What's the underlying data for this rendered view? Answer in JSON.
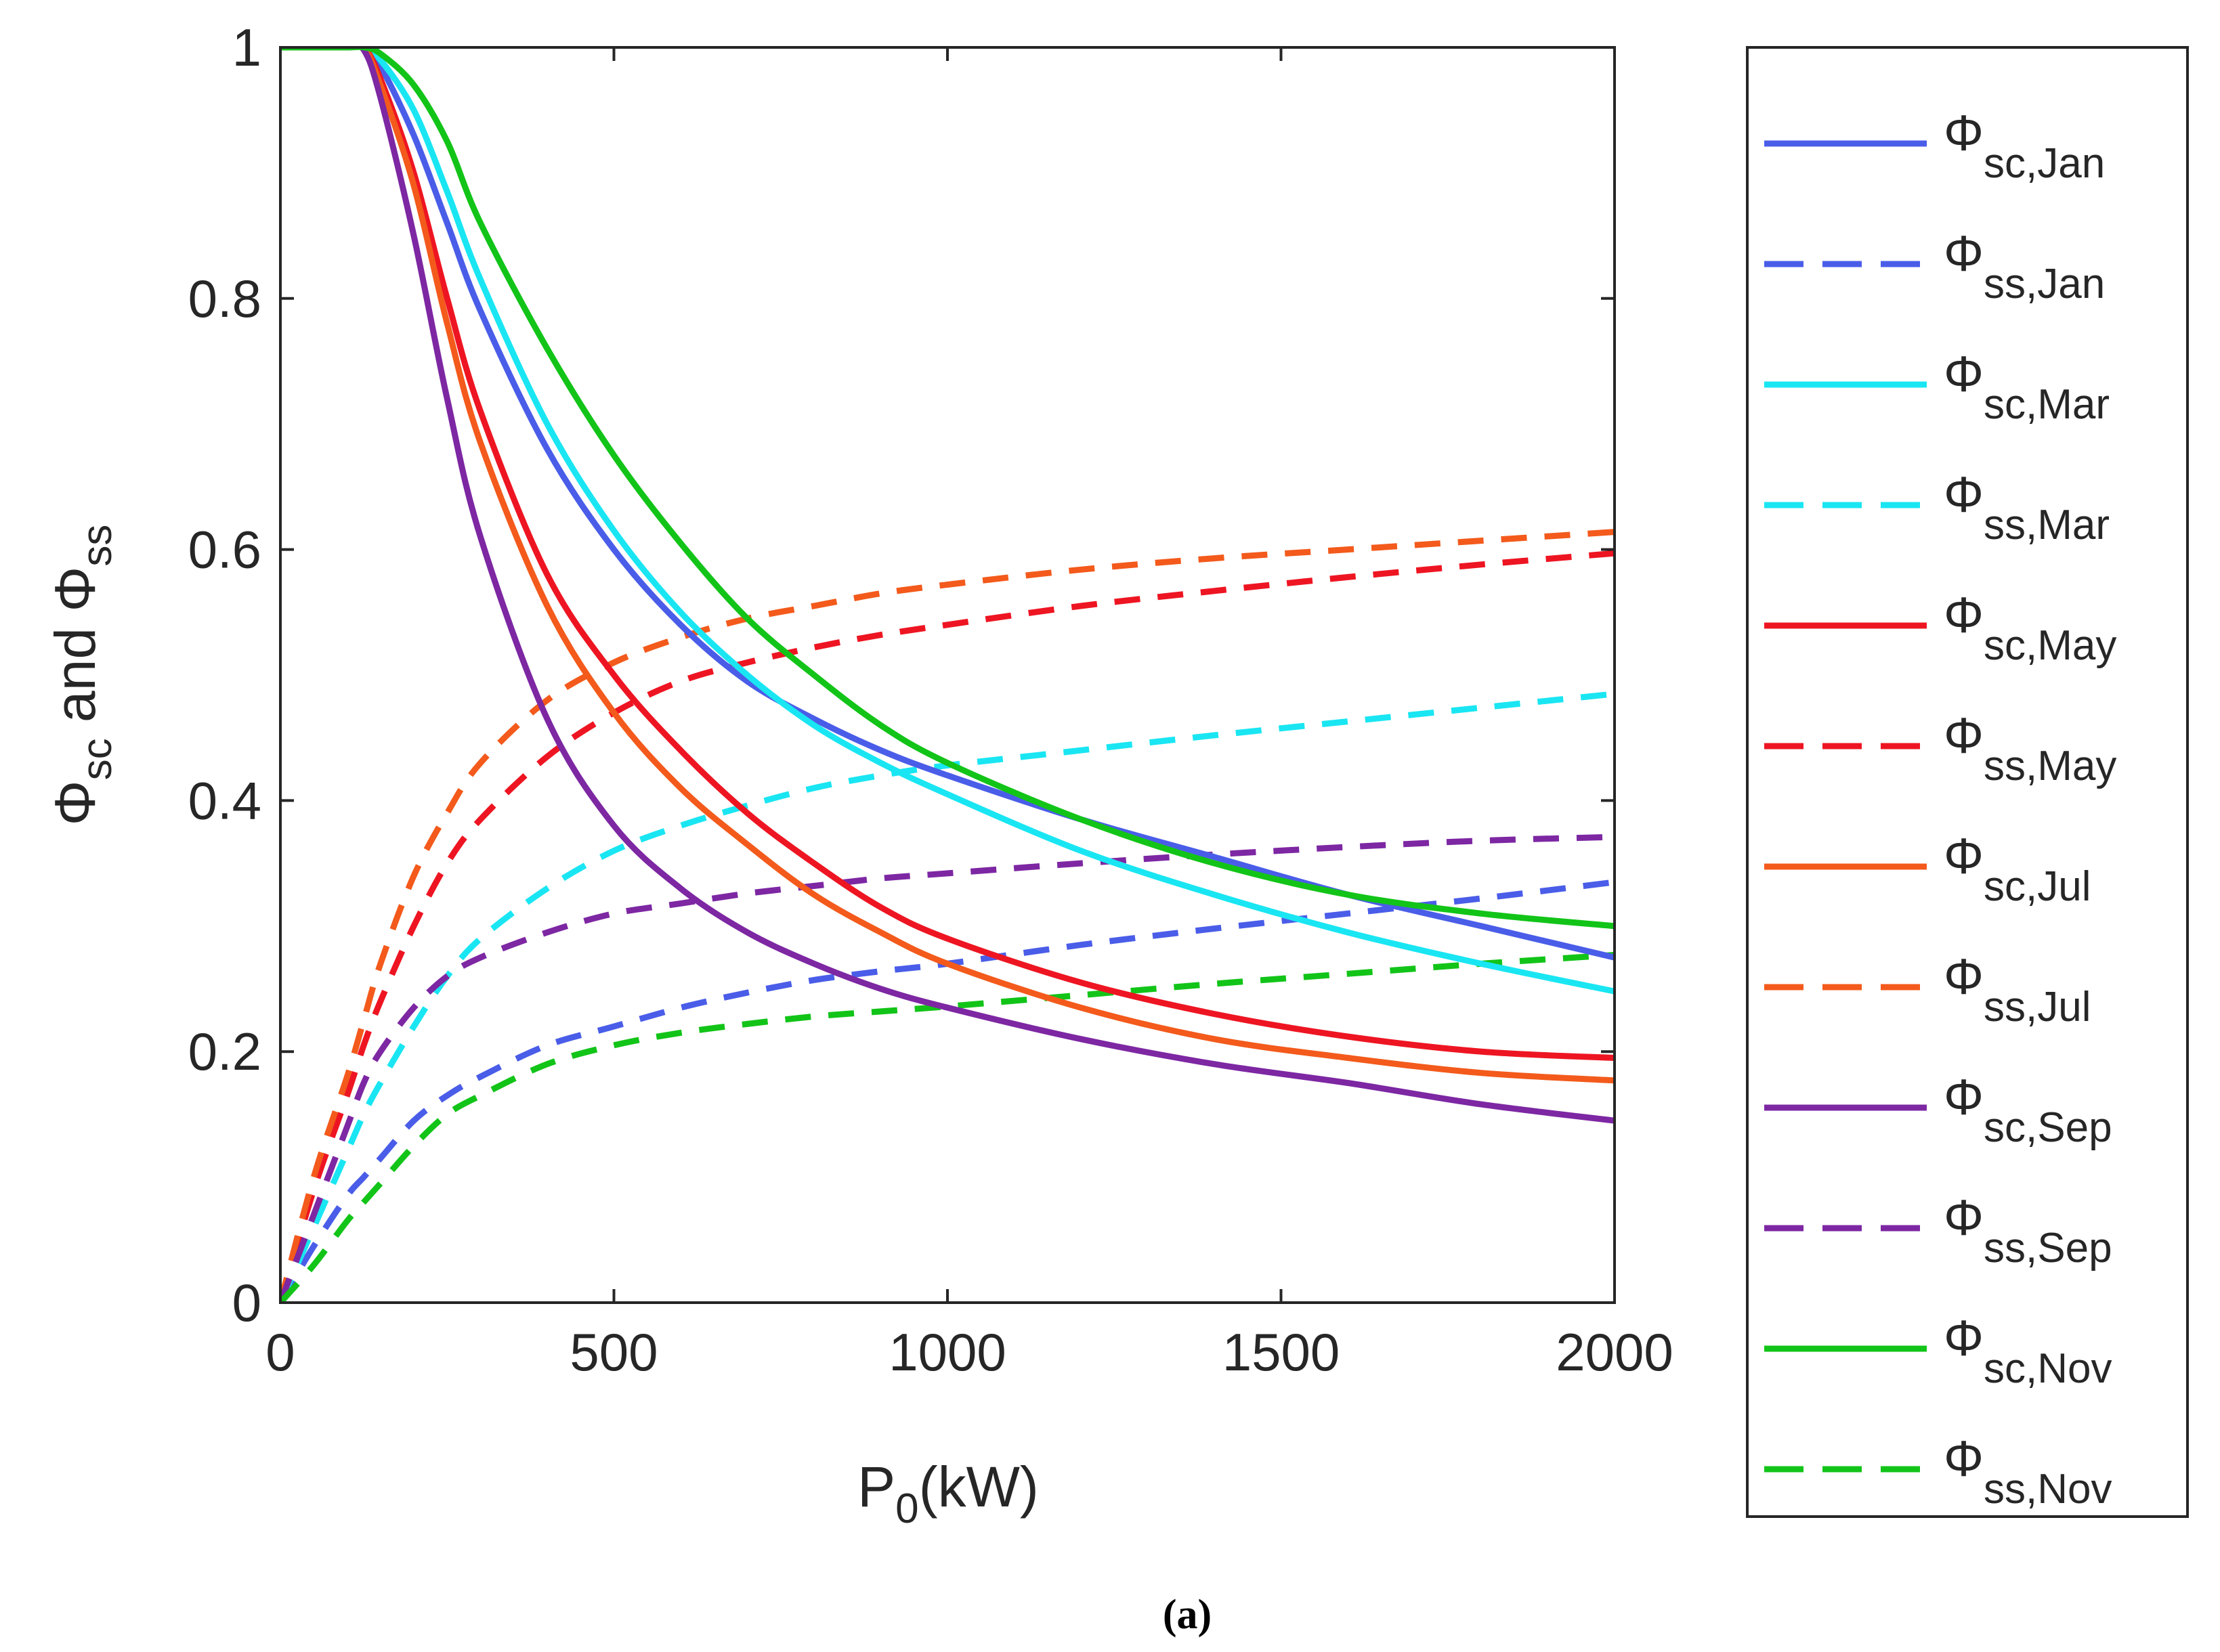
{
  "chart_data": {
    "type": "line",
    "title": "",
    "caption": "(a)",
    "xlabel": {
      "main": "P",
      "sub": "0",
      "rest": "(kW)"
    },
    "ylabel": {
      "phi": "Φ",
      "sub1": "sc",
      "mid": " and ",
      "phi2": "Φ",
      "sub2": "ss"
    },
    "xlim": [
      0,
      2000
    ],
    "ylim": [
      0,
      1
    ],
    "xticks": [
      0,
      500,
      1000,
      1500,
      2000
    ],
    "xtick_labels": [
      "0",
      "500",
      "1000",
      "1500",
      "2000"
    ],
    "yticks": [
      0,
      0.2,
      0.4,
      0.6,
      0.8,
      1
    ],
    "ytick_labels": [
      "0",
      "0.2",
      "0.4",
      "0.6",
      "0.8",
      "1"
    ],
    "grid": false,
    "legend_position": "outside-right",
    "x": [
      0,
      50,
      100,
      125,
      150,
      200,
      250,
      300,
      400,
      500,
      600,
      700,
      800,
      900,
      1000,
      1200,
      1400,
      1600,
      1800,
      2000
    ],
    "series": [
      {
        "name": "Φsc,Jan",
        "symbol": "Φ",
        "sub": "sc,Jan",
        "color": "#4a5de8",
        "dash": "solid",
        "values": [
          1,
          1,
          1,
          1,
          0.985,
          0.93,
          0.86,
          0.79,
          0.68,
          0.6,
          0.54,
          0.495,
          0.465,
          0.44,
          0.42,
          0.385,
          0.355,
          0.325,
          0.3,
          0.275
        ]
      },
      {
        "name": "Φss,Jan",
        "symbol": "Φ",
        "sub": "ss,Jan",
        "color": "#4a5de8",
        "dash": "dashed",
        "values": [
          0,
          0.045,
          0.085,
          0.1,
          0.115,
          0.145,
          0.165,
          0.18,
          0.205,
          0.22,
          0.235,
          0.247,
          0.257,
          0.264,
          0.27,
          0.285,
          0.298,
          0.31,
          0.322,
          0.335
        ]
      },
      {
        "name": "Φsc,Mar",
        "symbol": "Φ",
        "sub": "sc,Mar",
        "color": "#19e6f2",
        "dash": "solid",
        "values": [
          1,
          1,
          1,
          1,
          0.99,
          0.95,
          0.885,
          0.815,
          0.7,
          0.615,
          0.55,
          0.5,
          0.46,
          0.43,
          0.405,
          0.36,
          0.325,
          0.295,
          0.27,
          0.248
        ]
      },
      {
        "name": "Φss,Mar",
        "symbol": "Φ",
        "sub": "ss,Mar",
        "color": "#19e6f2",
        "dash": "dashed",
        "values": [
          0,
          0.06,
          0.12,
          0.15,
          0.175,
          0.22,
          0.26,
          0.29,
          0.33,
          0.36,
          0.38,
          0.396,
          0.41,
          0.42,
          0.428,
          0.44,
          0.452,
          0.463,
          0.474,
          0.485
        ]
      },
      {
        "name": "Φsc,May",
        "symbol": "Φ",
        "sub": "sc,May",
        "color": "#ee1522",
        "dash": "solid",
        "values": [
          1,
          1,
          1,
          1,
          0.975,
          0.9,
          0.8,
          0.71,
          0.58,
          0.5,
          0.44,
          0.39,
          0.35,
          0.315,
          0.29,
          0.255,
          0.23,
          0.212,
          0.2,
          0.195
        ]
      },
      {
        "name": "Φss,May",
        "symbol": "Φ",
        "sub": "ss,May",
        "color": "#ee1522",
        "dash": "dashed",
        "values": [
          0,
          0.09,
          0.165,
          0.205,
          0.24,
          0.3,
          0.35,
          0.385,
          0.435,
          0.47,
          0.495,
          0.51,
          0.522,
          0.532,
          0.54,
          0.555,
          0.567,
          0.578,
          0.588,
          0.597
        ]
      },
      {
        "name": "Φsc,Jul",
        "symbol": "Φ",
        "sub": "sc,Jul",
        "color": "#f35a1b",
        "dash": "solid",
        "values": [
          1,
          1,
          1,
          1,
          0.97,
          0.89,
          0.78,
          0.685,
          0.555,
          0.47,
          0.41,
          0.365,
          0.325,
          0.295,
          0.27,
          0.235,
          0.21,
          0.195,
          0.183,
          0.177
        ]
      },
      {
        "name": "Φss,Jul",
        "symbol": "Φ",
        "sub": "ss,Jul",
        "color": "#f35a1b",
        "dash": "dashed",
        "values": [
          0,
          0.1,
          0.18,
          0.225,
          0.27,
          0.34,
          0.39,
          0.43,
          0.48,
          0.51,
          0.53,
          0.545,
          0.555,
          0.565,
          0.572,
          0.584,
          0.593,
          0.6,
          0.607,
          0.614
        ]
      },
      {
        "name": "Φsc,Sep",
        "symbol": "Φ",
        "sub": "sc,Sep",
        "color": "#7d27a3",
        "dash": "solid",
        "values": [
          1,
          1,
          1,
          0.998,
          0.96,
          0.85,
          0.72,
          0.61,
          0.465,
          0.38,
          0.33,
          0.295,
          0.27,
          0.25,
          0.235,
          0.21,
          0.19,
          0.175,
          0.158,
          0.145
        ]
      },
      {
        "name": "Φss,Sep",
        "symbol": "Φ",
        "sub": "ss,Sep",
        "color": "#7d27a3",
        "dash": "dashed",
        "values": [
          0,
          0.07,
          0.14,
          0.175,
          0.2,
          0.235,
          0.26,
          0.275,
          0.295,
          0.31,
          0.318,
          0.326,
          0.332,
          0.338,
          0.342,
          0.35,
          0.357,
          0.363,
          0.368,
          0.371
        ]
      },
      {
        "name": "Φsc,Nov",
        "symbol": "Φ",
        "sub": "sc,Nov",
        "color": "#12c418",
        "dash": "solid",
        "values": [
          1,
          1,
          1,
          1,
          0.995,
          0.97,
          0.925,
          0.86,
          0.76,
          0.675,
          0.605,
          0.545,
          0.5,
          0.46,
          0.43,
          0.385,
          0.35,
          0.325,
          0.31,
          0.3
        ]
      },
      {
        "name": "Φss,Nov",
        "symbol": "Φ",
        "sub": "ss,Nov",
        "color": "#12c418",
        "dash": "dashed",
        "values": [
          0,
          0.03,
          0.065,
          0.08,
          0.095,
          0.125,
          0.15,
          0.165,
          0.19,
          0.205,
          0.215,
          0.222,
          0.228,
          0.232,
          0.236,
          0.245,
          0.254,
          0.262,
          0.27,
          0.277
        ]
      }
    ]
  }
}
